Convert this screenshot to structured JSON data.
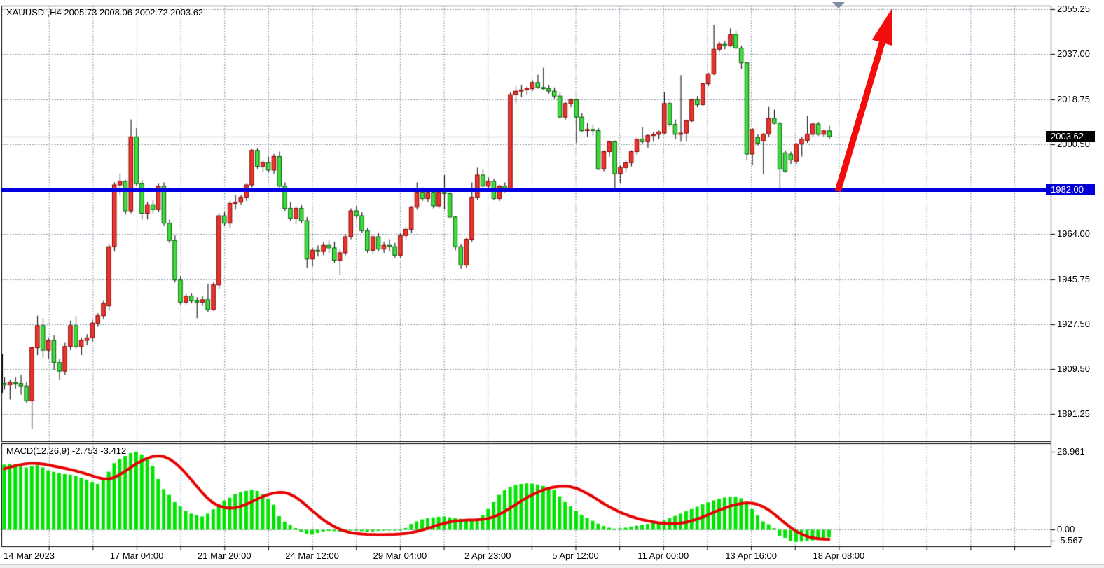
{
  "header": {
    "symbol_line": "XAUUSD-,H4  2005.73 2008.06 2002.72 2003.62"
  },
  "macd": {
    "label": "MACD(12,26,9) -2.753 -3.412"
  },
  "price_axis": {
    "tick_labels": [
      "2055.25",
      "2037.00",
      "2018.75",
      "2000.50",
      "1964.00",
      "1945.75",
      "1927.50",
      "1909.50",
      "1891.25"
    ],
    "current_price_badge": "2003.62",
    "support_badge": "1982.00"
  },
  "macd_axis": {
    "max": "26.961",
    "zero": "0.00",
    "min": "-5.567"
  },
  "time_axis": {
    "labels": [
      "14 Mar 2023",
      "17 Mar 04:00",
      "21 Mar 20:00",
      "24 Mar 12:00",
      "29 Mar 04:00",
      "2 Apr 23:00",
      "5 Apr 12:00",
      "11 Apr 00:00",
      "13 Apr 16:00",
      "18 Apr 08:00"
    ]
  },
  "colors": {
    "bull": "#e8362e",
    "bull_border": "#8b0000",
    "bear": "#3cdd3c",
    "bear_border": "#0a5a0a",
    "wick": "#000000",
    "grid": "#8b98ac",
    "panel_border": "#000000",
    "support_line": "#0000e0",
    "current_price_line": "#98a2ae",
    "macd_bar": "#00e400",
    "macd_signal": "#e60000",
    "arrow": "#f20d0d",
    "badge_black": "#000000",
    "badge_blue": "#0000d6",
    "marker": "#808ca0"
  },
  "chart_data": [
    {
      "type": "candlestick",
      "title": "XAUUSD- H4",
      "open": 2005.73,
      "high": 2008.06,
      "low": 2002.72,
      "close": 2003.62,
      "ylim": [
        1879.8,
        2056.7
      ],
      "price_ticks": [
        2055.25,
        2037.0,
        2018.75,
        2000.5,
        1982.25,
        1964.0,
        1945.75,
        1927.5,
        1909.5,
        1891.25
      ],
      "support_line": 1982.0,
      "current_price": 2003.62,
      "color_convention": "red = bullish, green = bearish",
      "candles": [
        [
          1903.5,
          1906,
          1901,
          1903
        ],
        [
          1903,
          1905,
          1897,
          1904
        ],
        [
          1904,
          1906,
          1901.5,
          1903.5
        ],
        [
          1903.5,
          1907,
          1899,
          1902.5
        ],
        [
          1902.5,
          1904,
          1895.5,
          1896.5
        ],
        [
          1896.5,
          1918.5,
          1885,
          1918
        ],
        [
          1918,
          1931,
          1915,
          1927
        ],
        [
          1927,
          1930,
          1914,
          1917
        ],
        [
          1917,
          1922,
          1913.5,
          1921
        ],
        [
          1921,
          1923,
          1909,
          1912
        ],
        [
          1912,
          1913.5,
          1905,
          1908.5
        ],
        [
          1908.5,
          1920,
          1907,
          1918.5
        ],
        [
          1918.5,
          1929,
          1917,
          1927
        ],
        [
          1927,
          1931,
          1917.5,
          1918.5
        ],
        [
          1918.5,
          1922,
          1915,
          1921
        ],
        [
          1921,
          1923.5,
          1919,
          1922
        ],
        [
          1922,
          1929,
          1920.5,
          1928
        ],
        [
          1928,
          1932,
          1926.5,
          1931
        ],
        [
          1931,
          1937,
          1929.5,
          1936
        ],
        [
          1935,
          1960,
          1933,
          1959
        ],
        [
          1959,
          1985,
          1957,
          1984
        ],
        [
          1984,
          1988.5,
          1980,
          1985.5
        ],
        [
          1985.5,
          1986,
          1972,
          1973.5
        ],
        [
          1973.5,
          2010.5,
          1972.5,
          2003.5
        ],
        [
          2003.5,
          2007,
          1983.5,
          1984.5
        ],
        [
          1984.5,
          1986,
          1970,
          1972.5
        ],
        [
          1972.5,
          1977,
          1970,
          1976
        ],
        [
          1976,
          1978,
          1972.5,
          1974
        ],
        [
          1974,
          1984.5,
          1973,
          1983.5
        ],
        [
          1983.5,
          1985,
          1967.5,
          1968.5
        ],
        [
          1968.5,
          1970,
          1960.5,
          1961.5
        ],
        [
          1961.5,
          1963.5,
          1944.5,
          1945.5
        ],
        [
          1945.5,
          1947,
          1935.5,
          1936.5
        ],
        [
          1936.5,
          1940,
          1935.5,
          1939
        ],
        [
          1939,
          1940,
          1936,
          1937
        ],
        [
          1937,
          1938.5,
          1930,
          1936.5
        ],
        [
          1936.5,
          1939,
          1935,
          1937.5
        ],
        [
          1937.5,
          1944,
          1932.5,
          1933.5
        ],
        [
          1933.5,
          1944.5,
          1933,
          1943.5
        ],
        [
          1943.5,
          1972.5,
          1942,
          1971.5
        ],
        [
          1971.5,
          1973,
          1967.5,
          1968.5
        ],
        [
          1968.5,
          1977.5,
          1966.5,
          1976.5
        ],
        [
          1976.5,
          1980,
          1974,
          1977
        ],
        [
          1977,
          1980,
          1976,
          1979
        ],
        [
          1979,
          1984.5,
          1977.5,
          1984
        ],
        [
          1984,
          1998.5,
          1983,
          1998
        ],
        [
          1998,
          1999,
          1990.5,
          1991.5
        ],
        [
          1991.5,
          1994,
          1989,
          1993
        ],
        [
          1993,
          1995.5,
          1989,
          1990
        ],
        [
          1990,
          1996.5,
          1988.5,
          1995.5
        ],
        [
          1995.5,
          1997.5,
          1983,
          1983.5
        ],
        [
          1983.5,
          1985,
          1973.5,
          1974.5
        ],
        [
          1974.5,
          1977,
          1969.5,
          1970.5
        ],
        [
          1970.5,
          1975.5,
          1968,
          1974.5
        ],
        [
          1974.5,
          1976,
          1968.5,
          1969.5
        ],
        [
          1969.5,
          1971,
          1950.5,
          1954
        ],
        [
          1954,
          1958.5,
          1951,
          1957.5
        ],
        [
          1957.5,
          1959.5,
          1955,
          1957
        ],
        [
          1957,
          1961,
          1955.5,
          1959.5
        ],
        [
          1959.5,
          1961.5,
          1956.5,
          1958.5
        ],
        [
          1958.5,
          1961,
          1952.5,
          1953.5
        ],
        [
          1953.5,
          1958,
          1947.5,
          1956.5
        ],
        [
          1956.5,
          1964,
          1955.5,
          1963
        ],
        [
          1963,
          1974.5,
          1962,
          1973.5
        ],
        [
          1973.5,
          1975.5,
          1970.5,
          1971.5
        ],
        [
          1971.5,
          1973,
          1964.5,
          1965.5
        ],
        [
          1965.5,
          1966.5,
          1956.5,
          1957.5
        ],
        [
          1957.5,
          1963.5,
          1956,
          1963
        ],
        [
          1963,
          1964.5,
          1957,
          1958
        ],
        [
          1958,
          1961,
          1956.5,
          1959.5
        ],
        [
          1959.5,
          1962,
          1957,
          1959
        ],
        [
          1959,
          1960.5,
          1954.5,
          1955.5
        ],
        [
          1955.5,
          1964.5,
          1954.5,
          1963.5
        ],
        [
          1963.5,
          1967,
          1962,
          1966
        ],
        [
          1966,
          1975.5,
          1964.5,
          1975
        ],
        [
          1975,
          1985,
          1974,
          1981
        ],
        [
          1981,
          1983,
          1977.5,
          1978.5
        ],
        [
          1978.5,
          1982,
          1977,
          1981
        ],
        [
          1981,
          1982.5,
          1974.5,
          1975.5
        ],
        [
          1975.5,
          1982,
          1974.5,
          1981
        ],
        [
          1981,
          1988,
          1974,
          1980.5
        ],
        [
          1980.5,
          1981.5,
          1970.5,
          1971
        ],
        [
          1971,
          1971.5,
          1957.5,
          1959
        ],
        [
          1959,
          1960,
          1950,
          1951.5
        ],
        [
          1951.5,
          1962.5,
          1950.5,
          1962
        ],
        [
          1962,
          1985,
          1961,
          1979
        ],
        [
          1979,
          1991,
          1978,
          1988
        ],
        [
          1988,
          1990.5,
          1983,
          1983.5
        ],
        [
          1983.5,
          1987,
          1982.5,
          1985.5
        ],
        [
          1985.5,
          1986.5,
          1978,
          1978.5
        ],
        [
          1978.5,
          1984,
          1977.5,
          1983.5
        ],
        [
          1983.5,
          1985,
          1981,
          1982.5
        ],
        [
          1982.3,
          2021.5,
          1981.5,
          2020.6
        ],
        [
          2020.6,
          2024,
          2017,
          2022
        ],
        [
          2022,
          2024.5,
          2019.5,
          2022.5
        ],
        [
          2022.5,
          2024,
          2020.5,
          2023
        ],
        [
          2023,
          2026.5,
          2022,
          2025.5
        ],
        [
          2025.5,
          2028.7,
          2023,
          2023.5
        ],
        [
          2023.5,
          2031.5,
          2022.5,
          2023
        ],
        [
          2023,
          2024.5,
          2021,
          2022
        ],
        [
          2022,
          2023.5,
          2019,
          2020
        ],
        [
          2020,
          2021.5,
          2011,
          2011.5
        ],
        [
          2011.5,
          2017.5,
          2010.5,
          2017
        ],
        [
          2017,
          2019,
          2015.5,
          2018.5
        ],
        [
          2018.5,
          2019,
          2001,
          2011.5
        ],
        [
          2011.5,
          2013,
          2005.5,
          2006
        ],
        [
          2006,
          2009,
          2003.5,
          2006.5
        ],
        [
          2006.5,
          2008.5,
          2004,
          2006
        ],
        [
          2006,
          2007,
          1990,
          1990.5
        ],
        [
          1990.5,
          1998,
          1989.5,
          1997.5
        ],
        [
          1997.5,
          2002,
          1995.5,
          2001.5
        ],
        [
          2001.5,
          2002,
          1982,
          1988.5
        ],
        [
          1988.5,
          1992,
          1984.5,
          1991
        ],
        [
          1991,
          1994,
          1989,
          1993
        ],
        [
          1993,
          1998,
          1991.5,
          1997.5
        ],
        [
          1997.5,
          2003,
          1996,
          2002.5
        ],
        [
          2002.5,
          2007.5,
          2000.5,
          2001.5
        ],
        [
          2001.5,
          2004.5,
          1999,
          2004
        ],
        [
          2004,
          2005.5,
          2001.5,
          2004.5
        ],
        [
          2004.5,
          2006,
          2002.5,
          2005.5
        ],
        [
          2005,
          2021.5,
          2004.5,
          2017
        ],
        [
          2017,
          2018,
          2007.5,
          2008.5
        ],
        [
          2008.5,
          2010.5,
          2002.5,
          2004.5
        ],
        [
          2004.5,
          2028.5,
          2001.5,
          2005
        ],
        [
          2005,
          2010.5,
          2001.5,
          2010
        ],
        [
          2010,
          2019,
          2009.5,
          2018.5
        ],
        [
          2018.5,
          2020,
          2015.5,
          2016.5
        ],
        [
          2016.5,
          2025.5,
          2016,
          2025
        ],
        [
          2025,
          2029.5,
          2024,
          2029
        ],
        [
          2029,
          2049,
          2028.5,
          2039
        ],
        [
          2039,
          2042,
          2038,
          2041
        ],
        [
          2041,
          2042.5,
          2039,
          2040.5
        ],
        [
          2040.5,
          2047.5,
          2040,
          2045
        ],
        [
          2045,
          2046.5,
          2039,
          2039.5
        ],
        [
          2039.5,
          2040.5,
          2031,
          2033.5
        ],
        [
          2033.5,
          2034,
          1994,
          1996.5
        ],
        [
          1996.5,
          2007,
          1992,
          2006.5
        ],
        [
          2003.2,
          2004.5,
          2000,
          2000.9
        ],
        [
          2001.8,
          2005,
          1988.3,
          2004.6
        ],
        [
          2004.6,
          2015.6,
          2003.5,
          2011
        ],
        [
          2011,
          2014.5,
          2008.5,
          2009
        ],
        [
          2009,
          2009.6,
          1982.2,
          1990.4
        ],
        [
          1997,
          1998,
          1989,
          1989.6
        ],
        [
          1996.4,
          1997.5,
          1992.5,
          1994.1
        ],
        [
          1993.6,
          2001,
          1992.5,
          2000.6
        ],
        [
          2000.6,
          2003.5,
          1995.5,
          2002.6
        ],
        [
          2002,
          2012,
          2001,
          2004.6
        ],
        [
          2004.5,
          2009.5,
          2003.5,
          2008.7
        ],
        [
          2008.7,
          2009.5,
          2004,
          2004.5
        ],
        [
          2004.5,
          2006.5,
          2003.5,
          2005.9
        ],
        [
          2005.9,
          2008,
          2002.5,
          2003.62
        ]
      ]
    },
    {
      "type": "bar+line",
      "title": "MACD(12,26,9)",
      "ylim": [
        -5.567,
        26.961
      ],
      "macd_value": -2.753,
      "signal_value": -3.412,
      "histogram": [
        22.5,
        22.8,
        22.3,
        22.0,
        21.5,
        22.0,
        22.3,
        21.5,
        20.5,
        20.0,
        19.5,
        19.2,
        19.0,
        18.5,
        18.0,
        17.3,
        16.5,
        15.8,
        17.5,
        20.0,
        23.0,
        24.5,
        25.5,
        26.5,
        26.96,
        26.0,
        24.5,
        22.0,
        17.5,
        14.0,
        12.0,
        9.5,
        8.0,
        6.5,
        5.5,
        5.0,
        4.5,
        5.5,
        7.0,
        8.6,
        10.0,
        11.0,
        12.2,
        13.0,
        13.4,
        13.8,
        13.4,
        12.2,
        10.7,
        8.6,
        4.6,
        2.7,
        1.5,
        0.5,
        -0.8,
        -1.5,
        -1.8,
        -1.2,
        -0.8,
        -0.5,
        -0.6,
        -0.8,
        -0.5,
        -0.3,
        -0.4,
        -0.6,
        -0.9,
        -0.7,
        -0.5,
        -0.4,
        -0.3,
        -0.4,
        -0.2,
        0.5,
        1.9,
        2.8,
        3.5,
        3.9,
        4.2,
        4.4,
        4.5,
        4.2,
        3.9,
        3.7,
        3.6,
        3.6,
        3.8,
        5.0,
        7.1,
        9.5,
        12.0,
        13.6,
        14.8,
        15.4,
        15.8,
        16.0,
        15.9,
        15.6,
        15.1,
        14.4,
        13.6,
        11.5,
        9.5,
        8.0,
        6.5,
        5.0,
        4.0,
        3.0,
        2.0,
        1.2,
        0.6,
        0.3,
        0.4,
        0.6,
        1.0,
        1.3,
        1.6,
        1.9,
        2.2,
        2.6,
        3.1,
        3.9,
        4.7,
        5.5,
        6.3,
        7.1,
        7.9,
        8.7,
        9.4,
        10.1,
        10.7,
        11.1,
        11.4,
        11.3,
        10.8,
        9.6,
        7.1,
        4.9,
        2.8,
        1.8,
        0.5,
        -2.2,
        -2.9,
        -4.1,
        -4.3,
        -4.2,
        -4.0,
        -3.8,
        -3.6,
        -3.3,
        -2.753
      ],
      "signal": [
        21.0,
        21.6,
        22.1,
        22.5,
        22.8,
        23.0,
        22.9,
        22.7,
        22.4,
        22.0,
        21.6,
        21.2,
        20.8,
        20.3,
        19.8,
        19.2,
        18.6,
        18.0,
        17.6,
        17.5,
        18.0,
        19.0,
        20.2,
        21.5,
        22.8,
        23.8,
        24.7,
        25.3,
        25.5,
        25.3,
        24.5,
        23.2,
        21.5,
        19.5,
        17.3,
        15.0,
        12.8,
        10.8,
        9.2,
        8.2,
        7.6,
        7.4,
        7.5,
        8.0,
        8.7,
        9.6,
        10.5,
        11.4,
        12.1,
        12.6,
        12.9,
        12.8,
        12.2,
        11.2,
        9.8,
        8.2,
        6.5,
        4.9,
        3.4,
        2.1,
        1.0,
        0.1,
        -0.6,
        -1.1,
        -1.4,
        -1.6,
        -1.7,
        -1.75,
        -1.8,
        -1.8,
        -1.75,
        -1.7,
        -1.6,
        -1.4,
        -1.1,
        -0.7,
        -0.2,
        0.4,
        1.0,
        1.6,
        2.1,
        2.6,
        2.9,
        3.1,
        3.25,
        3.3,
        3.35,
        3.5,
        3.8,
        4.4,
        5.2,
        6.2,
        7.4,
        8.6,
        9.8,
        11.0,
        12.0,
        12.9,
        13.7,
        14.3,
        14.7,
        14.95,
        15.0,
        14.8,
        14.3,
        13.5,
        12.5,
        11.4,
        10.2,
        9.0,
        7.9,
        6.9,
        6.0,
        5.2,
        4.5,
        3.9,
        3.4,
        3.0,
        2.6,
        2.3,
        2.1,
        2.0,
        2.0,
        2.2,
        2.5,
        3.0,
        3.6,
        4.3,
        5.1,
        5.9,
        6.7,
        7.4,
        8.1,
        8.6,
        9.0,
        9.2,
        9.1,
        8.7,
        7.9,
        6.8,
        5.4,
        3.8,
        2.2,
        0.7,
        -0.6,
        -1.6,
        -2.4,
        -2.9,
        -3.2,
        -3.35,
        -3.412
      ]
    }
  ]
}
